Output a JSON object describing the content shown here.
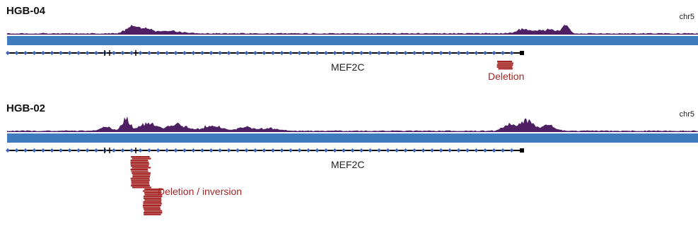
{
  "colors": {
    "coverage": "#4e1f63",
    "chromosome_bar": "#3e7bbf",
    "gene_line": "#000000",
    "exon_marker": "#3a65b3",
    "event_read": "#a52424",
    "baseline": "#b9b9b9"
  },
  "panels": [
    {
      "sample": "HGB-04",
      "chrom": "chr5",
      "gene": "MEF2C",
      "event_label": "Deletion"
    },
    {
      "sample": "HGB-02",
      "chrom": "chr5",
      "gene": "MEF2C",
      "event_label": "Deletion / inversion"
    }
  ]
}
